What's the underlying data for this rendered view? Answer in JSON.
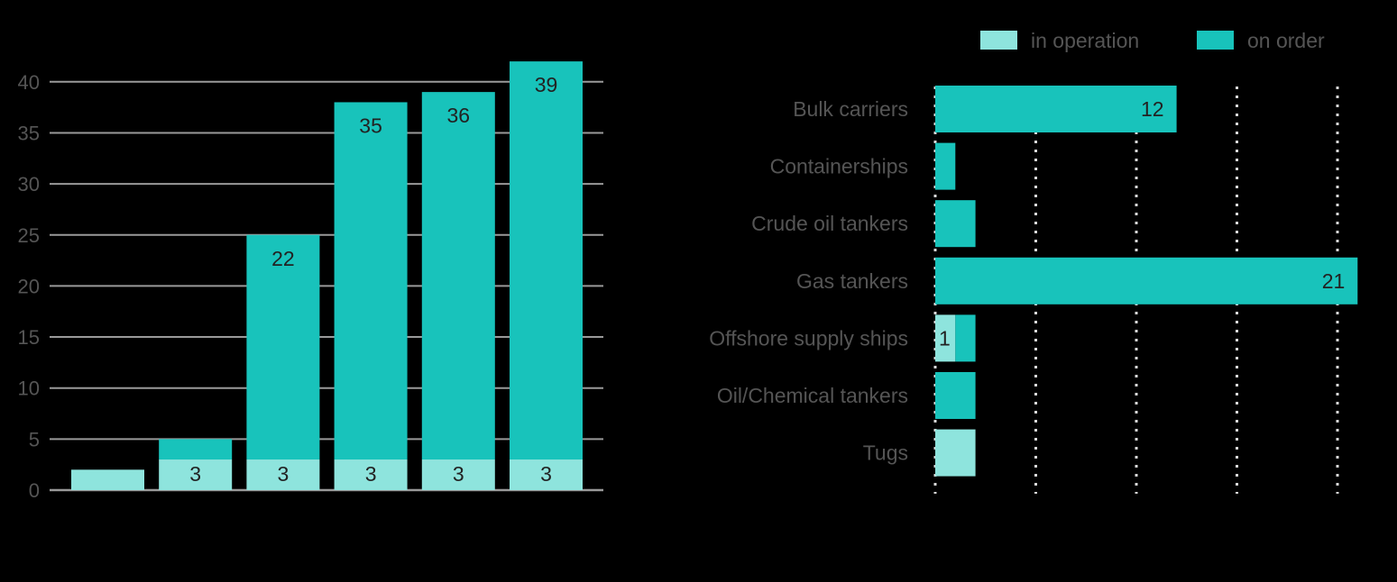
{
  "colors": {
    "in_operation": "#8ee4dd",
    "on_order": "#18c3bb",
    "gridline": "#9a9a9a",
    "text": "#555555",
    "data_label": "#222222"
  },
  "legend": {
    "in_operation": "in operation",
    "on_order": "on order",
    "placement": "top-right"
  },
  "chart_data": [
    {
      "type": "bar",
      "stacked": true,
      "categories": [
        "",
        "",
        "",
        "",
        "",
        ""
      ],
      "series": [
        {
          "name": "in operation",
          "values": [
            2,
            3,
            3,
            3,
            3,
            3
          ]
        },
        {
          "name": "on order",
          "values": [
            0,
            2,
            22,
            35,
            36,
            39
          ]
        }
      ],
      "data_labels": {
        "in operation": [
          "",
          "3",
          "3",
          "3",
          "3",
          "3"
        ],
        "on order": [
          "",
          "",
          "22",
          "35",
          "36",
          "39"
        ]
      },
      "yticks": [
        "0",
        "5",
        "10",
        "15",
        "20",
        "25",
        "30",
        "35",
        "40"
      ],
      "ylim": [
        0,
        42
      ],
      "grid": "horizontal",
      "title": "",
      "xlabel": "",
      "ylabel": ""
    },
    {
      "type": "bar",
      "orientation": "horizontal",
      "stacked": true,
      "categories": [
        "Bulk carriers",
        "Containerships",
        "Crude oil tankers",
        "Gas tankers",
        "Offshore supply ships",
        "Oil/Chemical tankers",
        "Tugs"
      ],
      "series": [
        {
          "name": "in operation",
          "values": [
            0,
            0,
            0,
            0,
            1,
            0,
            2
          ]
        },
        {
          "name": "on order",
          "values": [
            12,
            1,
            2,
            21,
            1,
            2,
            0
          ]
        }
      ],
      "data_labels": {
        "in operation": [
          "",
          "",
          "",
          "",
          "1",
          "",
          ""
        ],
        "on order": [
          "12",
          "",
          "",
          "21",
          "",
          "",
          ""
        ]
      },
      "xlim": [
        0,
        21
      ],
      "grid": "vertical dotted",
      "title": "",
      "xlabel": "",
      "ylabel": ""
    }
  ]
}
